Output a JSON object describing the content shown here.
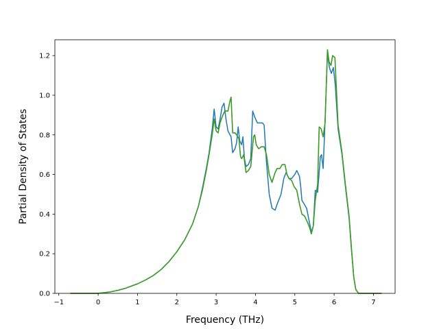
{
  "chart_data": {
    "type": "line",
    "title": "",
    "xlabel": "Frequency (THz)",
    "ylabel": "Partial Density of States",
    "xlim": [
      -1.1,
      7.55
    ],
    "ylim": [
      0.0,
      1.28
    ],
    "xticks": [
      -1,
      0,
      1,
      2,
      3,
      4,
      5,
      6,
      7
    ],
    "yticks": [
      0.0,
      0.2,
      0.4,
      0.6,
      0.8,
      1.0,
      1.2
    ],
    "xtick_labels": [
      "−1",
      "0",
      "1",
      "2",
      "3",
      "4",
      "5",
      "6",
      "7"
    ],
    "ytick_labels": [
      "0.0",
      "0.2",
      "0.4",
      "0.6",
      "0.8",
      "1.0",
      "1.2"
    ],
    "grid": false,
    "legend": "none",
    "series": [
      {
        "color": "#1f77b4",
        "points": [
          [
            -0.7,
            0.0
          ],
          [
            0.0,
            0.0
          ],
          [
            0.3,
            0.007
          ],
          [
            0.5,
            0.015
          ],
          [
            0.7,
            0.026
          ],
          [
            1.0,
            0.048
          ],
          [
            1.2,
            0.067
          ],
          [
            1.4,
            0.09
          ],
          [
            1.6,
            0.12
          ],
          [
            1.8,
            0.16
          ],
          [
            2.0,
            0.21
          ],
          [
            2.2,
            0.27
          ],
          [
            2.4,
            0.35
          ],
          [
            2.55,
            0.44
          ],
          [
            2.65,
            0.53
          ],
          [
            2.75,
            0.63
          ],
          [
            2.82,
            0.71
          ],
          [
            2.9,
            0.83
          ],
          [
            2.95,
            0.93
          ],
          [
            3.0,
            0.84
          ],
          [
            3.05,
            0.83
          ],
          [
            3.1,
            0.88
          ],
          [
            3.15,
            0.94
          ],
          [
            3.2,
            0.96
          ],
          [
            3.25,
            0.88
          ],
          [
            3.3,
            0.82
          ],
          [
            3.38,
            0.79
          ],
          [
            3.42,
            0.71
          ],
          [
            3.48,
            0.73
          ],
          [
            3.52,
            0.76
          ],
          [
            3.56,
            0.84
          ],
          [
            3.6,
            0.77
          ],
          [
            3.65,
            0.75
          ],
          [
            3.68,
            0.79
          ],
          [
            3.72,
            0.68
          ],
          [
            3.76,
            0.64
          ],
          [
            3.82,
            0.65
          ],
          [
            3.88,
            0.68
          ],
          [
            3.93,
            0.92
          ],
          [
            3.98,
            0.89
          ],
          [
            4.05,
            0.86
          ],
          [
            4.12,
            0.86
          ],
          [
            4.18,
            0.86
          ],
          [
            4.22,
            0.85
          ],
          [
            4.28,
            0.66
          ],
          [
            4.35,
            0.5
          ],
          [
            4.42,
            0.43
          ],
          [
            4.5,
            0.42
          ],
          [
            4.55,
            0.45
          ],
          [
            4.65,
            0.5
          ],
          [
            4.72,
            0.58
          ],
          [
            4.78,
            0.61
          ],
          [
            4.85,
            0.58
          ],
          [
            4.92,
            0.58
          ],
          [
            5.0,
            0.6
          ],
          [
            5.05,
            0.62
          ],
          [
            5.12,
            0.59
          ],
          [
            5.15,
            0.54
          ],
          [
            5.18,
            0.47
          ],
          [
            5.3,
            0.43
          ],
          [
            5.38,
            0.35
          ],
          [
            5.42,
            0.31
          ],
          [
            5.47,
            0.34
          ],
          [
            5.52,
            0.52
          ],
          [
            5.58,
            0.51
          ],
          [
            5.65,
            0.69
          ],
          [
            5.68,
            0.7
          ],
          [
            5.72,
            0.63
          ],
          [
            5.76,
            0.82
          ],
          [
            5.83,
            1.21
          ],
          [
            5.88,
            1.14
          ],
          [
            5.93,
            1.11
          ],
          [
            5.98,
            1.14
          ],
          [
            6.03,
            1.05
          ],
          [
            6.1,
            0.83
          ],
          [
            6.2,
            0.7
          ],
          [
            6.28,
            0.55
          ],
          [
            6.38,
            0.38
          ],
          [
            6.44,
            0.22
          ],
          [
            6.5,
            0.08
          ],
          [
            6.55,
            0.02
          ],
          [
            6.62,
            0.0
          ],
          [
            7.2,
            0.0
          ]
        ]
      },
      {
        "color": "#ff7f0e",
        "points": [
          [
            -0.7,
            0.0
          ],
          [
            0.0,
            0.0
          ],
          [
            0.3,
            0.007
          ],
          [
            0.5,
            0.015
          ],
          [
            0.7,
            0.026
          ],
          [
            1.0,
            0.048
          ],
          [
            1.2,
            0.067
          ],
          [
            1.4,
            0.09
          ],
          [
            1.6,
            0.12
          ],
          [
            1.8,
            0.16
          ],
          [
            2.0,
            0.21
          ],
          [
            2.2,
            0.27
          ],
          [
            2.4,
            0.35
          ],
          [
            2.55,
            0.44
          ],
          [
            2.65,
            0.52
          ],
          [
            2.75,
            0.62
          ],
          [
            2.82,
            0.7
          ],
          [
            2.9,
            0.8
          ],
          [
            2.95,
            0.88
          ],
          [
            3.0,
            0.82
          ],
          [
            3.05,
            0.81
          ],
          [
            3.1,
            0.86
          ],
          [
            3.15,
            0.89
          ],
          [
            3.22,
            0.92
          ],
          [
            3.3,
            0.92
          ],
          [
            3.35,
            0.97
          ],
          [
            3.38,
            0.99
          ],
          [
            3.42,
            0.81
          ],
          [
            3.48,
            0.81
          ],
          [
            3.52,
            0.8
          ],
          [
            3.58,
            0.78
          ],
          [
            3.62,
            0.69
          ],
          [
            3.65,
            0.68
          ],
          [
            3.7,
            0.7
          ],
          [
            3.76,
            0.61
          ],
          [
            3.82,
            0.62
          ],
          [
            3.88,
            0.64
          ],
          [
            3.95,
            0.79
          ],
          [
            3.98,
            0.8
          ],
          [
            4.02,
            0.75
          ],
          [
            4.08,
            0.73
          ],
          [
            4.15,
            0.74
          ],
          [
            4.22,
            0.74
          ],
          [
            4.28,
            0.7
          ],
          [
            4.35,
            0.6
          ],
          [
            4.42,
            0.56
          ],
          [
            4.5,
            0.61
          ],
          [
            4.55,
            0.63
          ],
          [
            4.62,
            0.63
          ],
          [
            4.68,
            0.65
          ],
          [
            4.75,
            0.65
          ],
          [
            4.8,
            0.6
          ],
          [
            4.85,
            0.58
          ],
          [
            4.92,
            0.57
          ],
          [
            4.98,
            0.54
          ],
          [
            5.05,
            0.52
          ],
          [
            5.12,
            0.45
          ],
          [
            5.18,
            0.4
          ],
          [
            5.25,
            0.39
          ],
          [
            5.32,
            0.36
          ],
          [
            5.38,
            0.33
          ],
          [
            5.42,
            0.3
          ],
          [
            5.47,
            0.34
          ],
          [
            5.52,
            0.47
          ],
          [
            5.58,
            0.55
          ],
          [
            5.62,
            0.84
          ],
          [
            5.67,
            0.83
          ],
          [
            5.72,
            0.79
          ],
          [
            5.77,
            0.86
          ],
          [
            5.83,
            1.23
          ],
          [
            5.87,
            1.17
          ],
          [
            5.92,
            1.15
          ],
          [
            5.96,
            1.2
          ],
          [
            6.02,
            1.19
          ],
          [
            6.1,
            0.85
          ],
          [
            6.2,
            0.71
          ],
          [
            6.28,
            0.56
          ],
          [
            6.38,
            0.39
          ],
          [
            6.44,
            0.23
          ],
          [
            6.5,
            0.08
          ],
          [
            6.55,
            0.02
          ],
          [
            6.62,
            0.0
          ],
          [
            7.2,
            0.0
          ]
        ]
      },
      {
        "color": "#2ca02c",
        "points": [
          [
            -0.7,
            0.0
          ],
          [
            0.0,
            0.0
          ],
          [
            0.3,
            0.007
          ],
          [
            0.5,
            0.015
          ],
          [
            0.7,
            0.026
          ],
          [
            1.0,
            0.048
          ],
          [
            1.2,
            0.067
          ],
          [
            1.4,
            0.09
          ],
          [
            1.6,
            0.12
          ],
          [
            1.8,
            0.16
          ],
          [
            2.0,
            0.21
          ],
          [
            2.2,
            0.27
          ],
          [
            2.4,
            0.35
          ],
          [
            2.55,
            0.44
          ],
          [
            2.65,
            0.52
          ],
          [
            2.75,
            0.62
          ],
          [
            2.82,
            0.7
          ],
          [
            2.9,
            0.8
          ],
          [
            2.95,
            0.88
          ],
          [
            3.0,
            0.82
          ],
          [
            3.05,
            0.81
          ],
          [
            3.1,
            0.86
          ],
          [
            3.15,
            0.89
          ],
          [
            3.22,
            0.92
          ],
          [
            3.3,
            0.92
          ],
          [
            3.35,
            0.97
          ],
          [
            3.38,
            0.99
          ],
          [
            3.42,
            0.81
          ],
          [
            3.48,
            0.81
          ],
          [
            3.52,
            0.8
          ],
          [
            3.58,
            0.78
          ],
          [
            3.62,
            0.69
          ],
          [
            3.65,
            0.68
          ],
          [
            3.7,
            0.7
          ],
          [
            3.76,
            0.61
          ],
          [
            3.82,
            0.62
          ],
          [
            3.88,
            0.64
          ],
          [
            3.95,
            0.79
          ],
          [
            3.98,
            0.8
          ],
          [
            4.02,
            0.75
          ],
          [
            4.08,
            0.73
          ],
          [
            4.15,
            0.74
          ],
          [
            4.22,
            0.74
          ],
          [
            4.28,
            0.7
          ],
          [
            4.35,
            0.6
          ],
          [
            4.42,
            0.56
          ],
          [
            4.5,
            0.61
          ],
          [
            4.55,
            0.63
          ],
          [
            4.62,
            0.63
          ],
          [
            4.68,
            0.65
          ],
          [
            4.75,
            0.65
          ],
          [
            4.8,
            0.6
          ],
          [
            4.85,
            0.58
          ],
          [
            4.92,
            0.57
          ],
          [
            4.98,
            0.54
          ],
          [
            5.05,
            0.52
          ],
          [
            5.12,
            0.45
          ],
          [
            5.18,
            0.4
          ],
          [
            5.25,
            0.39
          ],
          [
            5.32,
            0.36
          ],
          [
            5.38,
            0.33
          ],
          [
            5.42,
            0.3
          ],
          [
            5.47,
            0.34
          ],
          [
            5.52,
            0.47
          ],
          [
            5.58,
            0.55
          ],
          [
            5.62,
            0.84
          ],
          [
            5.67,
            0.83
          ],
          [
            5.72,
            0.79
          ],
          [
            5.77,
            0.86
          ],
          [
            5.83,
            1.23
          ],
          [
            5.87,
            1.17
          ],
          [
            5.92,
            1.15
          ],
          [
            5.96,
            1.2
          ],
          [
            6.02,
            1.19
          ],
          [
            6.1,
            0.85
          ],
          [
            6.2,
            0.71
          ],
          [
            6.28,
            0.56
          ],
          [
            6.38,
            0.39
          ],
          [
            6.44,
            0.23
          ],
          [
            6.5,
            0.08
          ],
          [
            6.55,
            0.02
          ],
          [
            6.62,
            0.0
          ],
          [
            7.2,
            0.0
          ]
        ]
      }
    ]
  }
}
